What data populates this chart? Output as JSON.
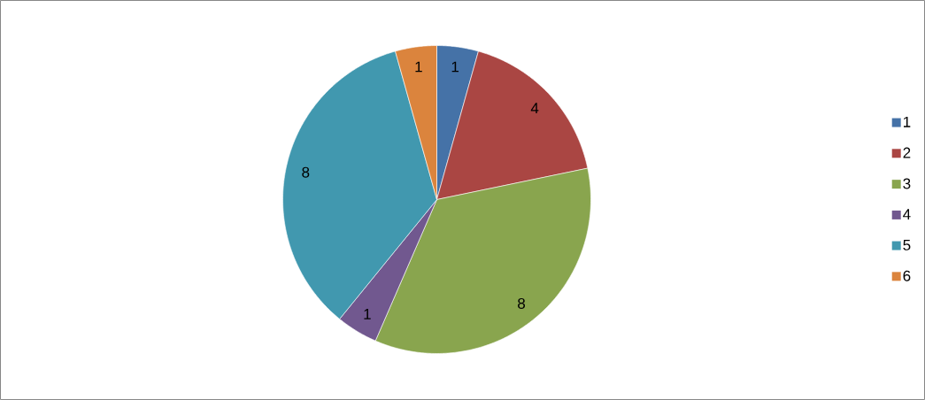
{
  "chart_data": {
    "type": "pie",
    "categories": [
      "1",
      "2",
      "3",
      "4",
      "5",
      "6"
    ],
    "values": [
      1,
      4,
      8,
      1,
      8,
      1
    ],
    "colors": [
      "#4572a7",
      "#aa4643",
      "#89a54e",
      "#71588f",
      "#4198af",
      "#db843d"
    ],
    "data_labels": true,
    "legend": "right"
  }
}
